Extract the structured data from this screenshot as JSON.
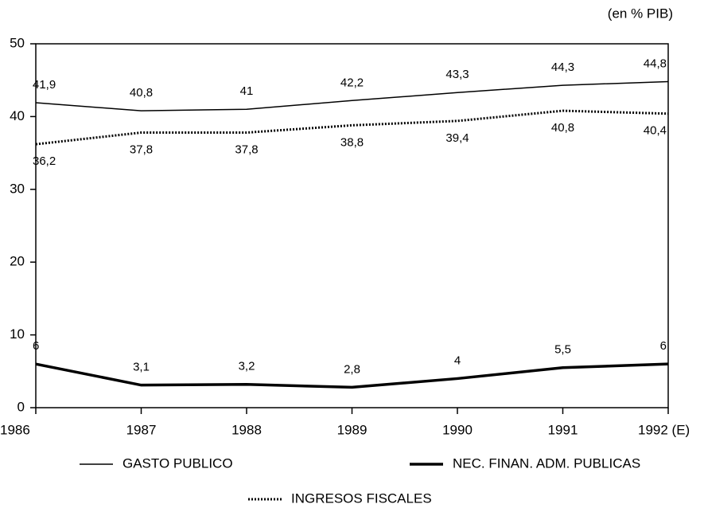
{
  "chart_data": {
    "type": "line",
    "y_label": "(en % PIB)",
    "categories": [
      "1986",
      "1987",
      "1988",
      "1989",
      "1990",
      "1991",
      "1992 (E)"
    ],
    "series": [
      {
        "name": "GASTO PUBLICO",
        "color": "#000000",
        "style": "thin",
        "values": [
          41.9,
          40.8,
          41,
          42.2,
          43.3,
          44.3,
          44.8
        ],
        "value_labels": [
          "41,9",
          "40,8",
          "41",
          "42,2",
          "43,3",
          "44,3",
          "44,8"
        ]
      },
      {
        "name": "INGRESOS FISCALES",
        "color": "#000000",
        "style": "dotted",
        "values": [
          36.2,
          37.8,
          37.8,
          38.8,
          39.4,
          40.8,
          40.4
        ],
        "value_labels": [
          "36,2",
          "37,8",
          "37,8",
          "38,8",
          "39,4",
          "40,8",
          "40,4"
        ]
      },
      {
        "name": "NEC. FINAN. ADM. PUBLICAS",
        "color": "#000000",
        "style": "thick",
        "values": [
          6,
          3.1,
          3.2,
          2.8,
          4,
          5.5,
          6
        ],
        "value_labels": [
          "6",
          "3,1",
          "3,2",
          "2,8",
          "4",
          "5,5",
          "6"
        ]
      }
    ],
    "ylim": [
      0,
      50
    ],
    "yticks": [
      0,
      10,
      20,
      30,
      40,
      50
    ],
    "grid": false
  }
}
